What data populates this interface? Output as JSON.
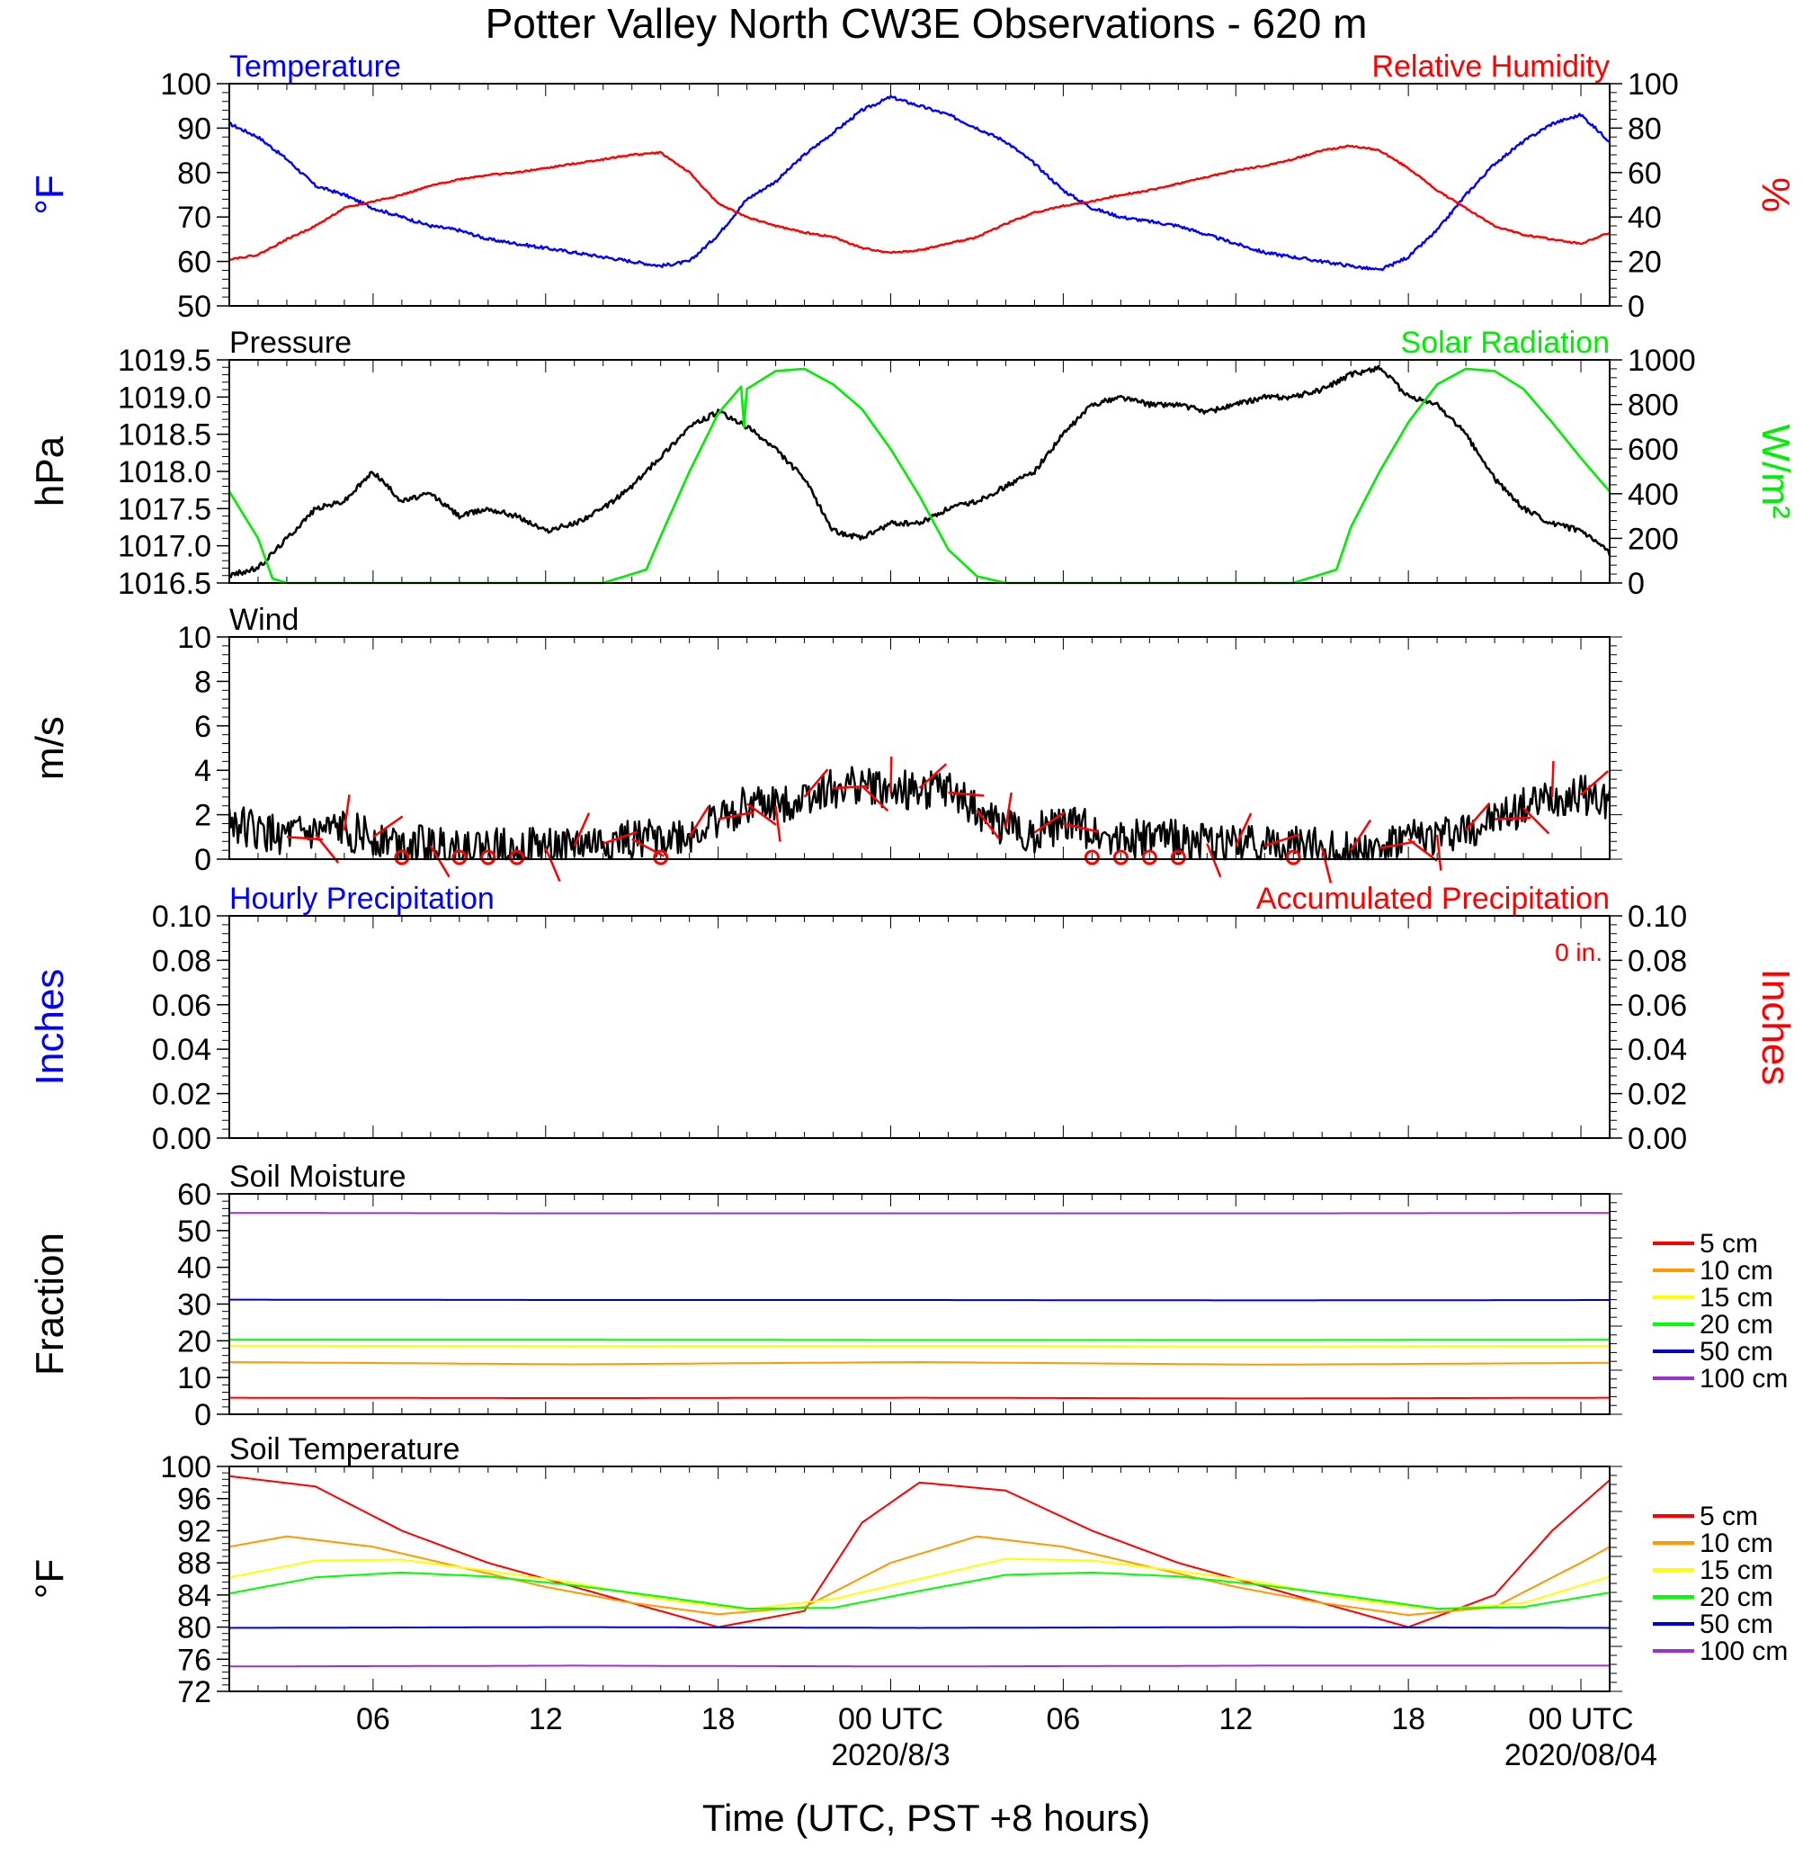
{
  "title": "Potter Valley North CW3E Observations - 620 m",
  "xaxis": {
    "label": "Time (UTC, PST +8 hours)",
    "range_hours": [
      0,
      48
    ],
    "tick_hours": [
      5,
      11,
      17,
      23,
      29,
      35,
      41,
      47
    ],
    "tick_labels": [
      "06",
      "12",
      "18",
      "00 UTC",
      "06",
      "12",
      "18",
      "00 UTC"
    ],
    "date_labels": [
      {
        "hour": 23,
        "text": "2020/8/3"
      },
      {
        "hour": 47,
        "text": "2020/08/04"
      }
    ]
  },
  "colors": {
    "blue": "#0000ff",
    "red": "#ff0000",
    "green": "#00ee00",
    "black": "#000000",
    "soil": {
      "5 cm": "#ff0000",
      "10 cm": "#ff9900",
      "15 cm": "#ffff00",
      "20 cm": "#00ff00",
      "50 cm": "#0000cc",
      "100 cm": "#9933cc"
    }
  },
  "chart_data": [
    {
      "type": "line",
      "left_title": "Temperature",
      "right_title": "Relative Humidity",
      "ylabel": "°F",
      "y2label": "%",
      "ylim": [
        50,
        100
      ],
      "yticks": [
        "50",
        "60",
        "70",
        "80",
        "90",
        "100"
      ],
      "y2lim": [
        0,
        100
      ],
      "y2ticks": [
        "0",
        "20",
        "40",
        "60",
        "80",
        "100"
      ],
      "series": [
        {
          "name": "Temperature",
          "axis": "left",
          "color": "blue",
          "x": [
            0,
            1,
            2,
            3,
            4,
            5,
            6,
            7,
            8,
            9,
            10,
            11,
            12,
            13,
            14,
            15,
            16,
            17,
            18,
            19,
            20,
            21,
            22,
            23,
            24,
            25,
            26,
            27,
            28,
            29,
            30,
            31,
            32,
            33,
            34,
            35,
            36,
            37,
            38,
            39,
            40,
            41,
            42,
            43,
            44,
            45,
            46,
            47,
            48
          ],
          "y": [
            91,
            88,
            83,
            77,
            75,
            72,
            70,
            68,
            67,
            65,
            64,
            63,
            62,
            61,
            60,
            59,
            60,
            66,
            74,
            78,
            84,
            89,
            94,
            97,
            95,
            93,
            90,
            87,
            82,
            76,
            72,
            70,
            69,
            68,
            66,
            64,
            62,
            61,
            60,
            59,
            58,
            61,
            67,
            75,
            82,
            87,
            91,
            93,
            87
          ]
        },
        {
          "name": "Relative Humidity",
          "axis": "right",
          "color": "red",
          "x": [
            0,
            1,
            2,
            3,
            4,
            5,
            6,
            7,
            8,
            9,
            10,
            11,
            12,
            13,
            14,
            15,
            16,
            17,
            18,
            19,
            20,
            21,
            22,
            23,
            24,
            25,
            26,
            27,
            28,
            29,
            30,
            31,
            32,
            33,
            34,
            35,
            36,
            37,
            38,
            39,
            40,
            41,
            42,
            43,
            44,
            45,
            46,
            47,
            48
          ],
          "y": [
            21,
            23,
            30,
            36,
            44,
            47,
            50,
            54,
            57,
            59,
            60,
            62,
            64,
            66,
            68,
            69,
            60,
            46,
            40,
            36,
            33,
            31,
            26,
            24,
            25,
            28,
            31,
            37,
            42,
            45,
            47,
            50,
            52,
            55,
            58,
            61,
            63,
            66,
            70,
            72,
            70,
            62,
            52,
            44,
            36,
            32,
            30,
            28,
            33
          ]
        }
      ]
    },
    {
      "type": "line",
      "left_title": "Pressure",
      "right_title": "Solar Radiation",
      "ylabel": "hPa",
      "y2label": "W/m²",
      "ylim": [
        1016.5,
        1019.5
      ],
      "yticks": [
        "1016.5",
        "1017.0",
        "1017.5",
        "1018.0",
        "1018.5",
        "1019.0",
        "1019.5"
      ],
      "y2lim": [
        0,
        1000
      ],
      "y2ticks": [
        "0",
        "200",
        "400",
        "600",
        "800",
        "1000"
      ],
      "series": [
        {
          "name": "Pressure",
          "axis": "left",
          "color": "black",
          "x": [
            0,
            1,
            2,
            3,
            4,
            5,
            6,
            7,
            8,
            9,
            10,
            11,
            12,
            13,
            14,
            15,
            16,
            17,
            18,
            19,
            20,
            21,
            22,
            23,
            24,
            25,
            26,
            27,
            28,
            29,
            30,
            31,
            32,
            33,
            34,
            35,
            36,
            37,
            38,
            39,
            40,
            41,
            42,
            43,
            44,
            45,
            46,
            47,
            48
          ],
          "y": [
            1016.6,
            1016.7,
            1017.1,
            1017.5,
            1017.6,
            1018.0,
            1017.6,
            1017.7,
            1017.4,
            1017.5,
            1017.4,
            1017.2,
            1017.3,
            1017.5,
            1017.8,
            1018.2,
            1018.6,
            1018.8,
            1018.6,
            1018.3,
            1017.9,
            1017.2,
            1017.1,
            1017.3,
            1017.3,
            1017.5,
            1017.6,
            1017.8,
            1018.0,
            1018.5,
            1018.9,
            1019.0,
            1018.9,
            1018.9,
            1018.8,
            1018.9,
            1019.0,
            1019.0,
            1019.1,
            1019.3,
            1019.4,
            1019.0,
            1018.9,
            1018.5,
            1017.9,
            1017.5,
            1017.3,
            1017.2,
            1016.9
          ]
        },
        {
          "name": "Solar Radiation",
          "axis": "right",
          "color": "green",
          "x": [
            0,
            1,
            1.5,
            2,
            3,
            4,
            5,
            6,
            7,
            8,
            9,
            10,
            11,
            12,
            13,
            14,
            14.5,
            15,
            16,
            17,
            17.8,
            17.9,
            18,
            19,
            20,
            21,
            22,
            23,
            24,
            25,
            26,
            27,
            28,
            28.5,
            29,
            30,
            31,
            32,
            33,
            34,
            35,
            36,
            37,
            38,
            38.5,
            39,
            40,
            41,
            42,
            43,
            44,
            45,
            46,
            47,
            48
          ],
          "y": [
            410,
            200,
            20,
            0,
            0,
            0,
            0,
            0,
            0,
            0,
            0,
            0,
            0,
            0,
            0,
            40,
            60,
            210,
            500,
            760,
            880,
            700,
            870,
            950,
            960,
            890,
            780,
            600,
            390,
            150,
            30,
            0,
            0,
            0,
            0,
            0,
            0,
            0,
            0,
            0,
            0,
            0,
            0,
            40,
            60,
            250,
            500,
            720,
            890,
            960,
            950,
            870,
            720,
            560,
            410
          ]
        }
      ]
    },
    {
      "type": "line",
      "left_title": "Wind",
      "ylabel": "m/s",
      "ylim": [
        0,
        10
      ],
      "yticks": [
        "0",
        "2",
        "4",
        "6",
        "8",
        "10"
      ],
      "series": [
        {
          "name": "Wind",
          "axis": "left",
          "color": "black",
          "x": [
            0,
            1,
            2,
            3,
            4,
            5,
            6,
            7,
            8,
            9,
            10,
            11,
            12,
            13,
            14,
            15,
            16,
            17,
            18,
            19,
            20,
            21,
            22,
            23,
            24,
            25,
            26,
            27,
            28,
            29,
            30,
            31,
            32,
            33,
            34,
            35,
            36,
            37,
            38,
            39,
            40,
            41,
            42,
            43,
            44,
            45,
            46,
            47,
            48
          ],
          "y": [
            1.8,
            1.2,
            1.0,
            1.1,
            1.3,
            1.0,
            0.8,
            0.6,
            0.6,
            0.5,
            0.6,
            0.5,
            0.6,
            0.7,
            0.9,
            1.0,
            1.0,
            1.8,
            2.5,
            2.4,
            2.8,
            3.2,
            3.3,
            3.0,
            3.2,
            3.0,
            2.2,
            1.4,
            1.2,
            1.6,
            1.3,
            1.0,
            0.9,
            0.9,
            0.7,
            0.6,
            0.6,
            0.6,
            0.5,
            0.4,
            0.5,
            0.9,
            1.1,
            1.3,
            1.8,
            2.3,
            2.8,
            2.9,
            2.6
          ]
        }
      ],
      "calm_markers_hours": [
        6,
        8,
        9,
        10,
        15,
        30,
        31,
        32,
        33,
        37
      ]
    },
    {
      "type": "line",
      "left_title": "Hourly Precipitation",
      "right_title": "Accumulated Precipitation",
      "annotation": "0 in.",
      "ylabel": "Inches",
      "y2label": "Inches",
      "ylim": [
        0,
        0.1
      ],
      "yticks": [
        "0.00",
        "0.02",
        "0.04",
        "0.06",
        "0.08",
        "0.10"
      ],
      "y2lim": [
        0,
        0.1
      ],
      "y2ticks": [
        "0.00",
        "0.02",
        "0.04",
        "0.06",
        "0.08",
        "0.10"
      ],
      "series": [
        {
          "name": "Hourly Precipitation",
          "axis": "left",
          "color": "blue",
          "x": [
            0,
            48
          ],
          "y": [
            0,
            0
          ]
        },
        {
          "name": "Accumulated Precipitation",
          "axis": "right",
          "color": "red",
          "x": [
            0,
            48
          ],
          "y": [
            0,
            0
          ]
        }
      ]
    },
    {
      "type": "line",
      "left_title": "Soil Moisture",
      "ylabel": "Fraction",
      "ylim": [
        0,
        60
      ],
      "yticks": [
        "0",
        "10",
        "20",
        "30",
        "40",
        "50",
        "60"
      ],
      "legend": [
        "5 cm",
        "10 cm",
        "15 cm",
        "20 cm",
        "50 cm",
        "100 cm"
      ],
      "series": [
        {
          "name": "5 cm",
          "x": [
            0,
            12,
            24,
            36,
            48
          ],
          "y": [
            4.5,
            4.4,
            4.5,
            4.3,
            4.5
          ]
        },
        {
          "name": "10 cm",
          "x": [
            0,
            12,
            24,
            36,
            48
          ],
          "y": [
            14.2,
            13.6,
            14.2,
            13.5,
            14.0
          ]
        },
        {
          "name": "15 cm",
          "x": [
            0,
            12,
            24,
            36,
            48
          ],
          "y": [
            18.7,
            18.5,
            18.6,
            18.4,
            18.6
          ]
        },
        {
          "name": "20 cm",
          "x": [
            0,
            12,
            24,
            36,
            48
          ],
          "y": [
            20.3,
            20.3,
            20.2,
            20.2,
            20.3
          ]
        },
        {
          "name": "50 cm",
          "x": [
            0,
            12,
            24,
            36,
            48
          ],
          "y": [
            31.2,
            31.1,
            31.1,
            31.0,
            31.1
          ]
        },
        {
          "name": "100 cm",
          "x": [
            0,
            12,
            24,
            36,
            48
          ],
          "y": [
            54.8,
            54.7,
            54.7,
            54.7,
            54.8
          ]
        }
      ]
    },
    {
      "type": "line",
      "left_title": "Soil Temperature",
      "ylabel": "°F",
      "ylim": [
        72,
        100
      ],
      "yticks": [
        "72",
        "76",
        "80",
        "84",
        "88",
        "92",
        "96",
        "100"
      ],
      "legend": [
        "5 cm",
        "10 cm",
        "15 cm",
        "20 cm",
        "50 cm",
        "100 cm"
      ],
      "series": [
        {
          "name": "5 cm",
          "x": [
            0,
            3,
            6,
            9,
            12,
            15,
            17,
            20,
            22,
            24,
            27,
            30,
            33,
            36,
            39,
            41,
            44,
            46,
            48
          ],
          "y": [
            98.8,
            97.5,
            92,
            88,
            85,
            82,
            80,
            82,
            93,
            98,
            97,
            92,
            88,
            85,
            82,
            80,
            84,
            92,
            98.3
          ]
        },
        {
          "name": "10 cm",
          "x": [
            0,
            2,
            5,
            8,
            11,
            14,
            17,
            20,
            23,
            26,
            29,
            32,
            35,
            38,
            41,
            44,
            47,
            48
          ],
          "y": [
            90,
            91.3,
            90,
            87.5,
            85,
            83,
            81.6,
            82.5,
            88,
            91.3,
            90,
            87.5,
            85,
            83,
            81.5,
            82.5,
            88,
            90
          ]
        },
        {
          "name": "15 cm",
          "x": [
            0,
            3,
            6,
            9,
            12,
            15,
            18,
            21,
            24,
            27,
            30,
            33,
            36,
            39,
            42,
            45,
            48
          ],
          "y": [
            86.2,
            88.3,
            88.4,
            87,
            85.5,
            83.5,
            82.2,
            83.5,
            86,
            88.5,
            88.3,
            87,
            85.5,
            83.5,
            82.2,
            83,
            86.3
          ]
        },
        {
          "name": "20 cm",
          "x": [
            0,
            3,
            6,
            9,
            12,
            15,
            18,
            21,
            24,
            27,
            30,
            33,
            36,
            39,
            42,
            45,
            48
          ],
          "y": [
            84.2,
            86.2,
            86.8,
            86.3,
            85.2,
            83.8,
            82.3,
            82.4,
            84.5,
            86.5,
            86.8,
            86.3,
            85.2,
            83.8,
            82.3,
            82.5,
            84.3
          ]
        },
        {
          "name": "50 cm",
          "x": [
            0,
            12,
            24,
            36,
            48
          ],
          "y": [
            79.9,
            80.0,
            79.9,
            80.0,
            79.9
          ]
        },
        {
          "name": "100 cm",
          "x": [
            0,
            12,
            24,
            36,
            48
          ],
          "y": [
            75.1,
            75.2,
            75.1,
            75.2,
            75.2
          ]
        }
      ]
    }
  ]
}
